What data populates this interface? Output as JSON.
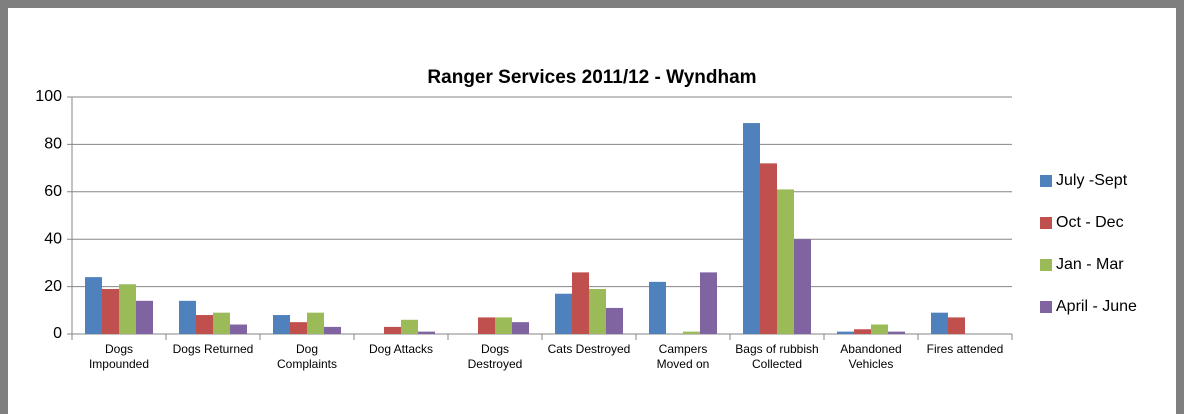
{
  "chart_data": {
    "type": "bar",
    "title": "Ranger Services 2011/12 - Wyndham",
    "categories": [
      "Dogs Impounded",
      "Dogs Returned",
      "Dog Complaints",
      "Dog Attacks",
      "Dogs Destroyed",
      "Cats Destroyed",
      "Campers Moved on",
      "Bags of rubbish Collected",
      "Abandoned Vehicles",
      "Fires attended"
    ],
    "series": [
      {
        "name": "July -Sept",
        "color": "#4f81bd",
        "values": [
          24,
          14,
          8,
          0,
          0,
          17,
          22,
          89,
          1,
          9
        ]
      },
      {
        "name": "Oct - Dec",
        "color": "#c0504d",
        "values": [
          19,
          8,
          5,
          3,
          7,
          26,
          0,
          72,
          2,
          7
        ]
      },
      {
        "name": "Jan - Mar",
        "color": "#9bbb59",
        "values": [
          21,
          9,
          9,
          6,
          7,
          19,
          1,
          61,
          4,
          0
        ]
      },
      {
        "name": "April - June",
        "color": "#8064a2",
        "values": [
          14,
          4,
          3,
          1,
          5,
          11,
          26,
          40,
          1,
          0
        ]
      }
    ],
    "ylim": [
      0,
      100
    ],
    "yticks": [
      0,
      20,
      40,
      60,
      80,
      100
    ],
    "grid": true,
    "legend": "right"
  }
}
